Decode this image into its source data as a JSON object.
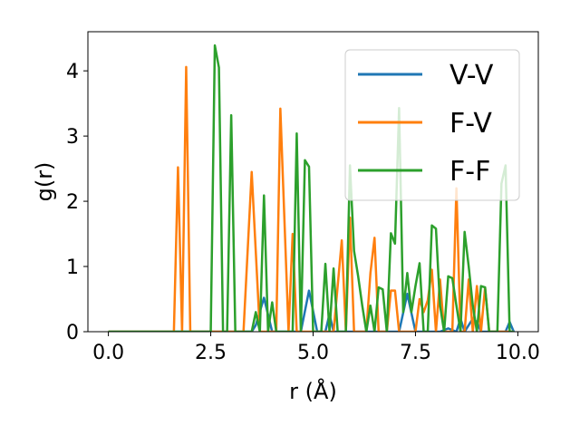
{
  "chart_data": {
    "type": "line",
    "xlabel": "r (Å)",
    "ylabel": "g(r)",
    "xlim": [
      -0.5,
      10.5
    ],
    "ylim": [
      0,
      4.6
    ],
    "xticks": [
      0.0,
      2.5,
      5.0,
      7.5,
      10.0
    ],
    "xtick_labels": [
      "0.0",
      "2.5",
      "5.0",
      "7.5",
      "10.0"
    ],
    "yticks": [
      0,
      1,
      2,
      3,
      4
    ],
    "ytick_labels": [
      "0",
      "1",
      "2",
      "3",
      "4"
    ],
    "grid": false,
    "legend_position": "top-right",
    "series": [
      {
        "name": "V-V",
        "color": "#1f77b4",
        "x": [
          0.0,
          3.5,
          3.6,
          3.8,
          4.0,
          4.7,
          4.9,
          5.1,
          5.3,
          5.4,
          5.5,
          5.6,
          7.1,
          7.3,
          7.5,
          8.1,
          8.3,
          8.5,
          8.6,
          8.7,
          8.8,
          8.9,
          9.0,
          9.1,
          9.2,
          9.7,
          9.8,
          9.9
        ],
        "y": [
          0,
          0,
          0.1,
          0.52,
          0,
          0,
          0.63,
          0,
          0,
          0.27,
          0,
          0,
          0,
          0.58,
          0,
          0,
          0.05,
          0,
          0.2,
          0,
          0.1,
          0.2,
          0.15,
          0,
          0,
          0,
          0.15,
          0
        ]
      },
      {
        "name": "F-V",
        "color": "#ff7f0e",
        "x": [
          0.0,
          1.6,
          1.7,
          1.8,
          1.9,
          2.0,
          3.3,
          3.5,
          3.7,
          4.1,
          4.2,
          4.4,
          4.5,
          4.6,
          5.5,
          5.7,
          5.8,
          5.9,
          6.0,
          6.1,
          6.3,
          6.4,
          6.5,
          6.6,
          6.8,
          6.9,
          7.0,
          7.1,
          7.5,
          7.6,
          7.7,
          7.8,
          7.9,
          8.0,
          8.1,
          8.2,
          8.4,
          8.5,
          8.6,
          8.7,
          8.8,
          8.9,
          9.0,
          9.1,
          9.2,
          9.3,
          9.4,
          9.6,
          9.8,
          9.9
        ],
        "y": [
          0,
          0,
          2.52,
          0,
          4.06,
          0,
          0,
          2.45,
          0,
          0,
          3.42,
          0,
          1.5,
          0,
          0,
          1.4,
          0,
          1.75,
          0,
          0,
          0,
          0.9,
          1.44,
          0,
          0,
          0.63,
          0.63,
          0,
          0,
          0.5,
          0.3,
          0.48,
          0.95,
          0,
          0.8,
          0,
          0,
          2.2,
          0,
          0,
          0.8,
          0,
          0.7,
          0,
          0.68,
          0,
          0,
          0,
          0,
          0
        ]
      },
      {
        "name": "F-F",
        "color": "#2ca02c",
        "x": [
          0.0,
          2.5,
          2.6,
          2.7,
          2.8,
          2.9,
          3.0,
          3.1,
          3.2,
          3.5,
          3.6,
          3.7,
          3.8,
          3.9,
          4.0,
          4.1,
          4.2,
          4.5,
          4.6,
          4.7,
          4.8,
          4.9,
          5.0,
          5.2,
          5.3,
          5.4,
          5.5,
          5.6,
          5.7,
          5.8,
          5.9,
          6.0,
          6.1,
          6.2,
          6.3,
          6.4,
          6.5,
          6.6,
          6.7,
          6.8,
          6.9,
          7.0,
          7.1,
          7.2,
          7.3,
          7.4,
          7.5,
          7.6,
          7.7,
          7.8,
          7.9,
          8.0,
          8.1,
          8.2,
          8.3,
          8.4,
          8.5,
          8.6,
          8.7,
          8.8,
          8.9,
          9.0,
          9.1,
          9.2,
          9.3,
          9.4,
          9.5,
          9.6,
          9.7,
          9.8,
          9.9
        ],
        "y": [
          0,
          0,
          4.39,
          4.05,
          0,
          0,
          3.32,
          0,
          0,
          0,
          0.3,
          0,
          2.09,
          0,
          0.45,
          0,
          0,
          0,
          3.04,
          0,
          2.63,
          2.53,
          0,
          0,
          1.04,
          0,
          0.97,
          0,
          0,
          0,
          2.55,
          1.24,
          0.85,
          0.4,
          0,
          0.4,
          0,
          0.68,
          0.65,
          0,
          1.51,
          1.35,
          3.43,
          0.3,
          0.9,
          0.3,
          0.7,
          1.05,
          0,
          0,
          1.63,
          1.58,
          0.4,
          0,
          0.85,
          0.82,
          0.4,
          0,
          1.53,
          1.0,
          0.4,
          0,
          0.7,
          0.68,
          0,
          0,
          0,
          2.27,
          2.55,
          0,
          0
        ]
      }
    ]
  }
}
